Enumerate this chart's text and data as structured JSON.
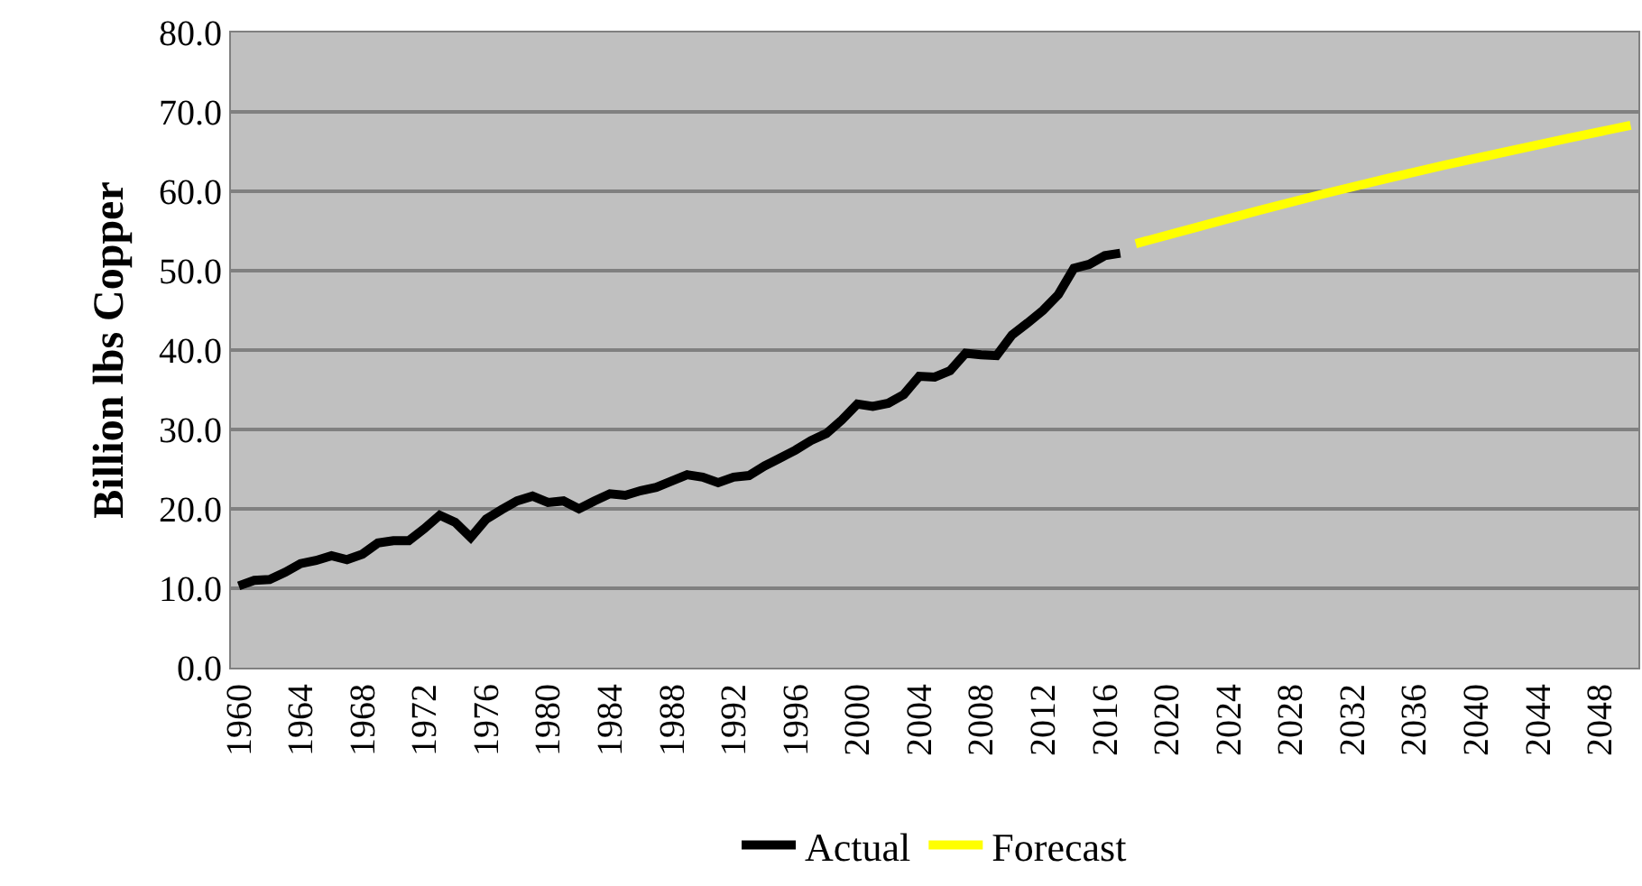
{
  "chart_data": {
    "type": "line",
    "ylabel": "Billion lbs Copper",
    "xlim": [
      1959.5,
      2050.5
    ],
    "xticks": [
      1960,
      1964,
      1968,
      1972,
      1976,
      1980,
      1984,
      1988,
      1992,
      1996,
      2000,
      2004,
      2008,
      2012,
      2016,
      2020,
      2024,
      2028,
      2032,
      2036,
      2040,
      2044,
      2048
    ],
    "ylim": [
      0,
      80
    ],
    "yticks": [
      {
        "value": 0,
        "label": "0.0"
      },
      {
        "value": 10,
        "label": "10.0"
      },
      {
        "value": 20,
        "label": "20.0"
      },
      {
        "value": 30,
        "label": "30.0"
      },
      {
        "value": 40,
        "label": "40.0"
      },
      {
        "value": 50,
        "label": "50.0"
      },
      {
        "value": 60,
        "label": "60.0"
      },
      {
        "value": 70,
        "label": "70.0"
      },
      {
        "value": 80,
        "label": "80.0"
      }
    ],
    "grid": "y",
    "legend": "bottom",
    "marker": "none",
    "line_style": "solid",
    "series": [
      {
        "name": "Actual",
        "color": "#000000",
        "x": [
          1960,
          1961,
          1962,
          1963,
          1964,
          1965,
          1966,
          1967,
          1968,
          1969,
          1970,
          1971,
          1972,
          1973,
          1974,
          1975,
          1976,
          1977,
          1978,
          1979,
          1980,
          1981,
          1982,
          1983,
          1984,
          1985,
          1986,
          1987,
          1988,
          1989,
          1990,
          1991,
          1992,
          1993,
          1994,
          1995,
          1996,
          1997,
          1998,
          1999,
          2000,
          2001,
          2002,
          2003,
          2004,
          2005,
          2006,
          2007,
          2008,
          2009,
          2010,
          2011,
          2012,
          2013,
          2014,
          2015,
          2016,
          2017
        ],
        "values": [
          10.3,
          11.0,
          11.1,
          12.0,
          13.1,
          13.5,
          14.1,
          13.6,
          14.3,
          15.7,
          16.0,
          16.0,
          17.5,
          19.2,
          18.3,
          16.4,
          18.7,
          19.9,
          21.0,
          21.6,
          20.8,
          21.0,
          20.0,
          21.0,
          21.9,
          21.7,
          22.3,
          22.7,
          23.5,
          24.3,
          24.0,
          23.3,
          24.0,
          24.2,
          25.4,
          26.4,
          27.4,
          28.6,
          29.5,
          31.2,
          33.2,
          32.9,
          33.3,
          34.4,
          36.7,
          36.6,
          37.4,
          39.6,
          39.4,
          39.3,
          41.9,
          43.4,
          45.0,
          47.0,
          50.3,
          50.8,
          51.9,
          52.2
        ]
      },
      {
        "name": "Forecast",
        "color": "#ffff00",
        "x": [
          2018,
          2022,
          2026,
          2030,
          2034,
          2038,
          2042,
          2046,
          2050
        ],
        "values": [
          53.4,
          55.5,
          57.6,
          59.6,
          61.5,
          63.3,
          65.0,
          66.7,
          68.3
        ]
      }
    ]
  }
}
